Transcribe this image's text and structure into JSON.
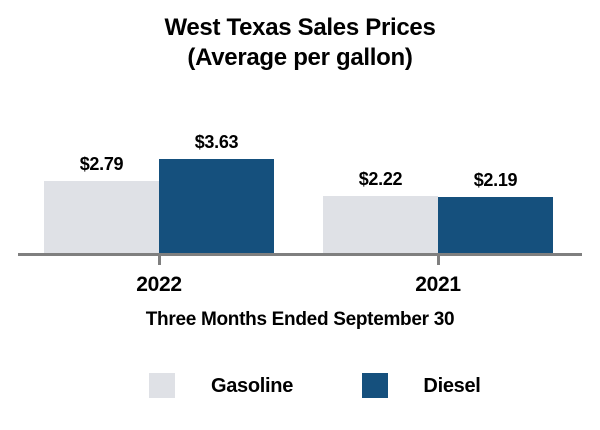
{
  "title": {
    "line1": "West Texas Sales Prices",
    "line2": "(Average per gallon)"
  },
  "chart_data": {
    "type": "bar",
    "title": "West Texas Sales Prices (Average per gallon)",
    "categories": [
      "2022",
      "2021"
    ],
    "series": [
      {
        "name": "Gasoline",
        "color": "#DFE1E6",
        "values": [
          2.79,
          2.22
        ],
        "labels": [
          "$2.79",
          "$2.22"
        ]
      },
      {
        "name": "Diesel",
        "color": "#15507D",
        "values": [
          3.63,
          2.19
        ],
        "labels": [
          "$3.63",
          "$2.19"
        ]
      }
    ],
    "xlabel": "Three Months Ended September 30",
    "ylabel": "",
    "ylim": [
      0,
      4
    ],
    "grid": false,
    "legend_position": "bottom",
    "value_prefix": "$",
    "axis_color": "#7F7F7F",
    "text_color": "#000000",
    "background": "#FFFFFF"
  }
}
